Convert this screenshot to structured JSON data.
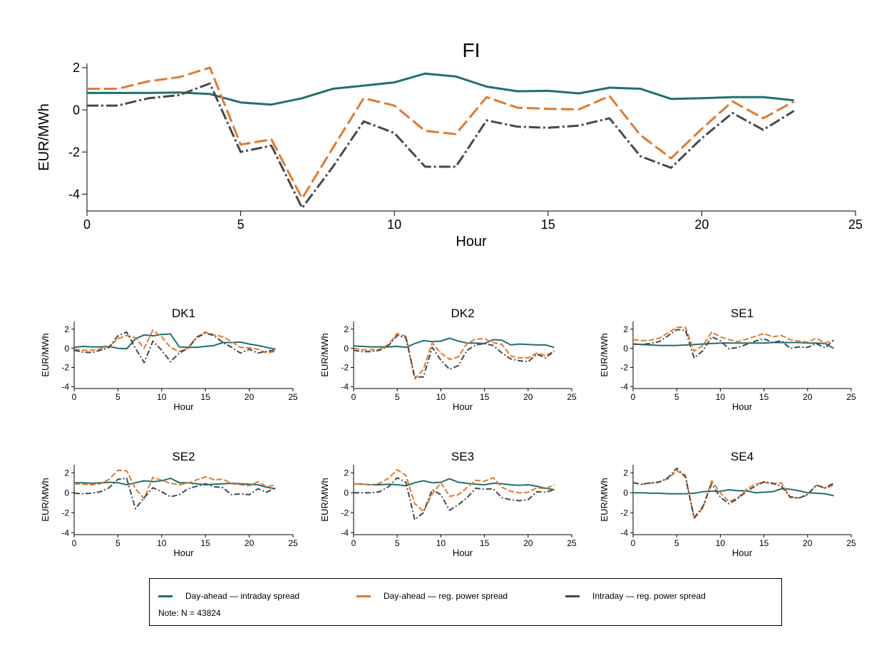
{
  "colors": {
    "da_id": "#1f7070",
    "da_reg": "#e07a2e",
    "id_reg": "#484848"
  },
  "legend": {
    "items": [
      {
        "key": "da_id",
        "label": "Day-ahead — intraday spread"
      },
      {
        "key": "da_reg",
        "label": "Day-ahead — reg. power spread"
      },
      {
        "key": "id_reg",
        "label": "Intraday — reg. power spread"
      }
    ],
    "note": "Note: N = 43824"
  },
  "chart_data": [
    {
      "type": "line",
      "title": "FI",
      "xlabel": "Hour",
      "ylabel": "EUR/MWh",
      "xlim": [
        0,
        25
      ],
      "ylim": [
        -4.8,
        2.2
      ],
      "xticks": [
        0,
        5,
        10,
        15,
        20,
        25
      ],
      "yticks": [
        -4,
        -2,
        0,
        2
      ],
      "x": [
        0,
        1,
        2,
        3,
        4,
        5,
        6,
        7,
        8,
        9,
        10,
        11,
        12,
        13,
        14,
        15,
        16,
        17,
        18,
        19,
        20,
        21,
        22,
        23
      ],
      "series": [
        {
          "key": "da_id",
          "name": "Day-ahead — intraday spread",
          "values": [
            0.8,
            0.8,
            0.8,
            0.82,
            0.75,
            0.35,
            0.25,
            0.55,
            1.0,
            1.15,
            1.3,
            1.72,
            1.58,
            1.1,
            0.88,
            0.9,
            0.78,
            1.05,
            1.0,
            0.52,
            0.55,
            0.6,
            0.6,
            0.45
          ]
        },
        {
          "key": "da_reg",
          "name": "Day-ahead — reg. power spread",
          "values": [
            1.0,
            1.0,
            1.35,
            1.55,
            2.0,
            -1.65,
            -1.4,
            -4.2,
            -1.8,
            0.55,
            0.2,
            -1.0,
            -1.15,
            0.6,
            0.1,
            0.05,
            0.02,
            0.65,
            -1.2,
            -2.3,
            -0.9,
            0.4,
            -0.4,
            0.4
          ]
        },
        {
          "key": "id_reg",
          "name": "Intraday — reg. power spread",
          "values": [
            0.2,
            0.2,
            0.55,
            0.7,
            1.25,
            -2.0,
            -1.7,
            -4.65,
            -2.7,
            -0.55,
            -1.1,
            -2.7,
            -2.7,
            -0.5,
            -0.8,
            -0.85,
            -0.75,
            -0.4,
            -2.2,
            -2.75,
            -1.35,
            -0.15,
            -0.95,
            -0.05
          ]
        }
      ]
    },
    {
      "type": "line",
      "title": "DK1",
      "xlabel": "Hour",
      "ylabel": "EUR/MWh",
      "xlim": [
        0,
        25
      ],
      "ylim": [
        -4.2,
        2.8
      ],
      "xticks": [
        0,
        5,
        10,
        15,
        20,
        25
      ],
      "yticks": [
        -4,
        -2,
        0,
        2
      ],
      "x": [
        0,
        1,
        2,
        3,
        4,
        5,
        6,
        7,
        8,
        9,
        10,
        11,
        12,
        13,
        14,
        15,
        16,
        17,
        18,
        19,
        20,
        21,
        22,
        23
      ],
      "series": [
        {
          "key": "da_id",
          "name": "Day-ahead — intraday spread",
          "values": [
            0.1,
            0.2,
            0.15,
            0.15,
            0.2,
            0.0,
            -0.05,
            1.0,
            1.4,
            1.3,
            1.45,
            1.5,
            0.15,
            0.1,
            0.1,
            0.2,
            0.3,
            0.6,
            0.6,
            0.65,
            0.45,
            0.3,
            0.1,
            -0.1
          ]
        },
        {
          "key": "da_reg",
          "name": "Day-ahead — reg. power spread",
          "values": [
            -0.1,
            -0.2,
            -0.2,
            -0.05,
            0.2,
            1.0,
            1.35,
            1.1,
            0.0,
            1.9,
            1.2,
            0.1,
            -0.35,
            0.05,
            1.2,
            1.7,
            1.4,
            1.2,
            0.7,
            0.1,
            0.05,
            -0.1,
            -0.5,
            -0.3
          ]
        },
        {
          "key": "id_reg",
          "name": "Intraday — reg. power spread",
          "values": [
            -0.2,
            -0.4,
            -0.45,
            -0.2,
            0.1,
            1.3,
            1.7,
            0.0,
            -1.5,
            0.75,
            -0.2,
            -1.4,
            -0.5,
            0.0,
            1.1,
            1.6,
            1.3,
            0.6,
            0.1,
            -0.5,
            -0.1,
            -0.5,
            -0.3,
            -0.2
          ]
        }
      ]
    },
    {
      "type": "line",
      "title": "DK2",
      "xlabel": "Hour",
      "ylabel": "EUR/MWh",
      "xlim": [
        0,
        25
      ],
      "ylim": [
        -4.2,
        2.8
      ],
      "xticks": [
        0,
        5,
        10,
        15,
        20,
        25
      ],
      "yticks": [
        -4,
        -2,
        0,
        2
      ],
      "x": [
        0,
        1,
        2,
        3,
        4,
        5,
        6,
        7,
        8,
        9,
        10,
        11,
        12,
        13,
        14,
        15,
        16,
        17,
        18,
        19,
        20,
        21,
        22,
        23
      ],
      "series": [
        {
          "key": "da_id",
          "name": "Day-ahead — intraday spread",
          "values": [
            0.25,
            0.2,
            0.15,
            0.15,
            0.15,
            0.2,
            0.1,
            0.5,
            0.8,
            0.7,
            0.75,
            1.05,
            0.75,
            0.55,
            0.55,
            0.5,
            0.9,
            0.85,
            0.35,
            0.45,
            0.4,
            0.35,
            0.35,
            0.1
          ]
        },
        {
          "key": "da_reg",
          "name": "Day-ahead — reg. power spread",
          "values": [
            0.0,
            -0.15,
            -0.15,
            -0.1,
            0.4,
            1.55,
            1.25,
            -3.2,
            -2.2,
            0.55,
            -0.5,
            -1.15,
            -0.9,
            0.5,
            0.95,
            1.0,
            0.6,
            0.4,
            -0.8,
            -1.0,
            -1.0,
            -0.5,
            -0.75,
            -0.3
          ]
        },
        {
          "key": "id_reg",
          "name": "Intraday — reg. power spread",
          "values": [
            -0.2,
            -0.35,
            -0.35,
            -0.2,
            0.3,
            1.35,
            1.1,
            -3.0,
            -3.0,
            0.1,
            -1.25,
            -2.2,
            -1.8,
            -0.2,
            0.35,
            0.5,
            0.3,
            -0.5,
            -1.1,
            -1.3,
            -1.4,
            -0.6,
            -1.0,
            -0.3
          ]
        }
      ]
    },
    {
      "type": "line",
      "title": "SE1",
      "xlabel": "Hour",
      "ylabel": "EUR/MWh",
      "xlim": [
        0,
        25
      ],
      "ylim": [
        -4.2,
        2.8
      ],
      "xticks": [
        0,
        5,
        10,
        15,
        20,
        25
      ],
      "yticks": [
        -4,
        -2,
        0,
        2
      ],
      "x": [
        0,
        1,
        2,
        3,
        4,
        5,
        6,
        7,
        8,
        9,
        10,
        11,
        12,
        13,
        14,
        15,
        16,
        17,
        18,
        19,
        20,
        21,
        22,
        23
      ],
      "series": [
        {
          "key": "da_id",
          "name": "Day-ahead — intraday spread",
          "values": [
            0.45,
            0.4,
            0.35,
            0.3,
            0.3,
            0.3,
            0.35,
            0.4,
            0.45,
            0.5,
            0.55,
            0.55,
            0.55,
            0.55,
            0.55,
            0.55,
            0.6,
            0.6,
            0.6,
            0.6,
            0.55,
            0.55,
            0.5,
            0.0
          ]
        },
        {
          "key": "da_reg",
          "name": "Day-ahead — reg. power spread",
          "values": [
            0.9,
            0.8,
            0.85,
            1.05,
            1.6,
            2.2,
            2.2,
            -0.3,
            0.3,
            1.7,
            1.2,
            0.9,
            0.7,
            0.95,
            1.25,
            1.55,
            1.2,
            1.35,
            0.9,
            0.75,
            0.65,
            1.05,
            0.55,
            0.85
          ]
        },
        {
          "key": "id_reg",
          "name": "Intraday — reg. power spread",
          "values": [
            0.45,
            0.4,
            0.5,
            0.7,
            1.3,
            1.95,
            1.9,
            -1.0,
            -0.25,
            1.2,
            0.8,
            -0.05,
            0.1,
            0.4,
            0.75,
            1.0,
            0.6,
            0.8,
            0.0,
            0.15,
            0.1,
            0.5,
            0.05,
            0.85
          ]
        }
      ]
    },
    {
      "type": "line",
      "title": "SE2",
      "xlabel": "Hour",
      "ylabel": "EUR/MWh",
      "xlim": [
        0,
        25
      ],
      "ylim": [
        -4.2,
        2.8
      ],
      "xticks": [
        0,
        5,
        10,
        15,
        20,
        25
      ],
      "yticks": [
        -4,
        -2,
        0,
        2
      ],
      "x": [
        0,
        1,
        2,
        3,
        4,
        5,
        6,
        7,
        8,
        9,
        10,
        11,
        12,
        13,
        14,
        15,
        16,
        17,
        18,
        19,
        20,
        21,
        22,
        23
      ],
      "series": [
        {
          "key": "da_id",
          "name": "Day-ahead — intraday spread",
          "values": [
            1.0,
            1.0,
            0.95,
            1.0,
            1.05,
            1.0,
            0.8,
            1.0,
            1.2,
            1.1,
            1.2,
            1.45,
            1.0,
            1.0,
            0.9,
            0.8,
            0.85,
            0.9,
            0.95,
            0.9,
            0.85,
            0.8,
            0.55,
            0.4
          ]
        },
        {
          "key": "da_reg",
          "name": "Day-ahead — reg. power spread",
          "values": [
            0.9,
            0.85,
            0.8,
            0.9,
            1.35,
            2.25,
            2.2,
            0.4,
            -0.6,
            1.55,
            1.25,
            0.95,
            0.8,
            0.95,
            1.3,
            1.6,
            1.3,
            1.35,
            0.9,
            0.8,
            0.7,
            1.1,
            0.6,
            0.8
          ]
        },
        {
          "key": "id_reg",
          "name": "Intraday — reg. power spread",
          "values": [
            -0.05,
            -0.1,
            -0.05,
            0.1,
            0.5,
            1.35,
            1.45,
            -1.6,
            -0.5,
            0.5,
            0.1,
            -0.4,
            -0.2,
            0.4,
            0.65,
            0.9,
            0.6,
            0.5,
            -0.2,
            -0.1,
            -0.2,
            0.4,
            0.05,
            0.5
          ]
        }
      ]
    },
    {
      "type": "line",
      "title": "SE3",
      "xlabel": "Hour",
      "ylabel": "EUR/MWh",
      "xlim": [
        0,
        25
      ],
      "ylim": [
        -4.2,
        2.8
      ],
      "xticks": [
        0,
        5,
        10,
        15,
        20,
        25
      ],
      "yticks": [
        -4,
        -2,
        0,
        2
      ],
      "x": [
        0,
        1,
        2,
        3,
        4,
        5,
        6,
        7,
        8,
        9,
        10,
        11,
        12,
        13,
        14,
        15,
        16,
        17,
        18,
        19,
        20,
        21,
        22,
        23
      ],
      "series": [
        {
          "key": "da_id",
          "name": "Day-ahead — intraday spread",
          "values": [
            0.9,
            0.85,
            0.8,
            0.8,
            0.85,
            0.8,
            0.7,
            1.0,
            1.2,
            1.0,
            1.05,
            1.4,
            1.05,
            0.95,
            0.85,
            0.8,
            0.95,
            0.9,
            0.8,
            0.75,
            0.8,
            0.65,
            0.45,
            0.3
          ]
        },
        {
          "key": "da_reg",
          "name": "Day-ahead — reg. power spread",
          "values": [
            0.9,
            0.85,
            0.8,
            0.95,
            1.45,
            2.3,
            1.75,
            -1.1,
            -1.85,
            -0.15,
            1.0,
            -0.35,
            -0.2,
            0.5,
            1.25,
            1.15,
            1.5,
            0.55,
            0.15,
            0.0,
            0.05,
            0.5,
            0.4,
            0.8
          ]
        },
        {
          "key": "id_reg",
          "name": "Intraday — reg. power spread",
          "values": [
            0.0,
            0.0,
            0.0,
            0.1,
            0.6,
            1.5,
            1.05,
            -2.7,
            -2.0,
            0.3,
            -0.2,
            -1.75,
            -1.2,
            -0.5,
            0.45,
            0.35,
            0.4,
            -0.5,
            -0.7,
            -0.8,
            -0.7,
            0.1,
            0.05,
            0.3
          ]
        }
      ]
    },
    {
      "type": "line",
      "title": "SE4",
      "xlabel": "Hour",
      "ylabel": "EUR/MWh",
      "xlim": [
        0,
        25
      ],
      "ylim": [
        -4.2,
        2.8
      ],
      "xticks": [
        0,
        5,
        10,
        15,
        20,
        25
      ],
      "yticks": [
        -4,
        -2,
        0,
        2
      ],
      "x": [
        0,
        1,
        2,
        3,
        4,
        5,
        6,
        7,
        8,
        9,
        10,
        11,
        12,
        13,
        14,
        15,
        16,
        17,
        18,
        19,
        20,
        21,
        22,
        23
      ],
      "series": [
        {
          "key": "da_id",
          "name": "Day-ahead — intraday spread",
          "values": [
            0.0,
            0.0,
            -0.05,
            -0.05,
            -0.1,
            -0.1,
            -0.1,
            -0.05,
            0.1,
            0.15,
            0.15,
            0.3,
            0.2,
            0.2,
            0.0,
            0.05,
            0.1,
            0.4,
            0.35,
            0.2,
            0.0,
            -0.05,
            -0.1,
            -0.3
          ]
        },
        {
          "key": "da_reg",
          "name": "Day-ahead — reg. power spread",
          "values": [
            1.0,
            0.85,
            0.95,
            1.1,
            1.4,
            2.2,
            1.75,
            -2.6,
            -1.55,
            1.2,
            0.0,
            -0.9,
            -0.5,
            0.35,
            0.85,
            1.05,
            0.9,
            1.0,
            -0.5,
            -0.5,
            -0.25,
            0.75,
            0.45,
            0.75
          ]
        },
        {
          "key": "id_reg",
          "name": "Intraday — reg. power spread",
          "values": [
            1.0,
            0.85,
            1.0,
            1.05,
            1.5,
            2.45,
            1.6,
            -2.5,
            -1.4,
            0.9,
            -0.45,
            -1.1,
            -0.6,
            0.15,
            0.65,
            1.1,
            0.95,
            0.65,
            -0.4,
            -0.55,
            -0.15,
            0.75,
            0.5,
            0.95
          ]
        }
      ]
    }
  ]
}
